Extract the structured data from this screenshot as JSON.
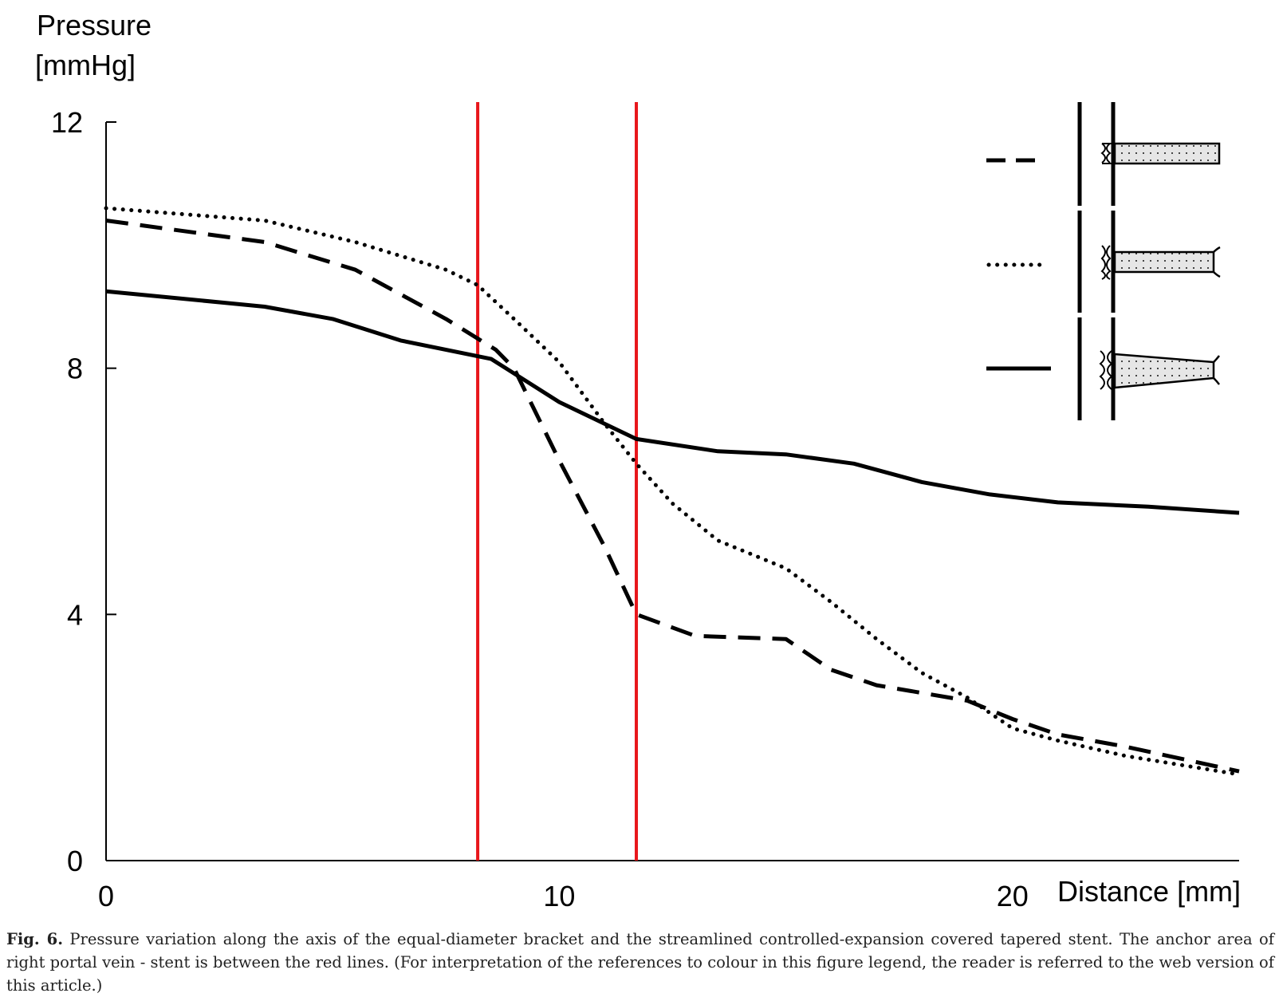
{
  "chart_data": {
    "type": "line",
    "ylabel_line1": "Pressure",
    "ylabel_line2": "[mmHg]",
    "xlabel": "Distance [mm]",
    "xlim": [
      0,
      25
    ],
    "ylim": [
      0,
      12
    ],
    "xticks": [
      0,
      10,
      20
    ],
    "yticks": [
      0,
      4,
      8,
      12
    ],
    "grid": false,
    "legend_position": "top-right",
    "reference_lines": {
      "color": "#e8161b",
      "x": [
        8.2,
        11.7
      ]
    },
    "series": [
      {
        "style": "dashed",
        "legend_icon": "equal-diameter-stent-icon",
        "x": [
          0,
          3.5,
          5.5,
          7.5,
          8.6,
          9,
          10,
          11,
          11.7,
          13,
          15,
          16,
          17,
          19,
          20,
          21,
          22.5,
          25
        ],
        "y": [
          10.4,
          10.05,
          9.6,
          8.8,
          8.3,
          8.0,
          6.5,
          5.1,
          4.0,
          3.65,
          3.6,
          3.1,
          2.85,
          2.6,
          2.3,
          2.05,
          1.85,
          1.45
        ]
      },
      {
        "style": "dotted",
        "legend_icon": "streamlined-stent-icon",
        "x": [
          0,
          3.5,
          5.5,
          7.5,
          8.2,
          9,
          10,
          11,
          11.7,
          12.5,
          13.5,
          15,
          16,
          17,
          18,
          19,
          20,
          21,
          22.5,
          25
        ],
        "y": [
          10.6,
          10.4,
          10.05,
          9.6,
          9.35,
          8.8,
          8.1,
          7.1,
          6.45,
          5.8,
          5.2,
          4.75,
          4.2,
          3.6,
          3.05,
          2.65,
          2.15,
          1.95,
          1.7,
          1.4
        ]
      },
      {
        "style": "solid",
        "legend_icon": "tapered-stent-icon",
        "x": [
          0,
          3.5,
          5,
          6.5,
          8.5,
          10,
          11.7,
          13.5,
          15,
          16.5,
          18,
          19.5,
          21,
          23,
          25
        ],
        "y": [
          9.25,
          9.0,
          8.8,
          8.45,
          8.15,
          7.45,
          6.85,
          6.65,
          6.6,
          6.45,
          6.15,
          5.95,
          5.82,
          5.75,
          5.65
        ]
      }
    ]
  },
  "caption": {
    "label": "Fig. 6.",
    "text": "Pressure variation along the axis of the equal-diameter bracket and the streamlined controlled-expansion covered tapered stent. The anchor area of right portal vein - stent is between the red lines. (For interpretation of the references to colour in this figure legend, the reader is referred to the web version of this article.)"
  }
}
